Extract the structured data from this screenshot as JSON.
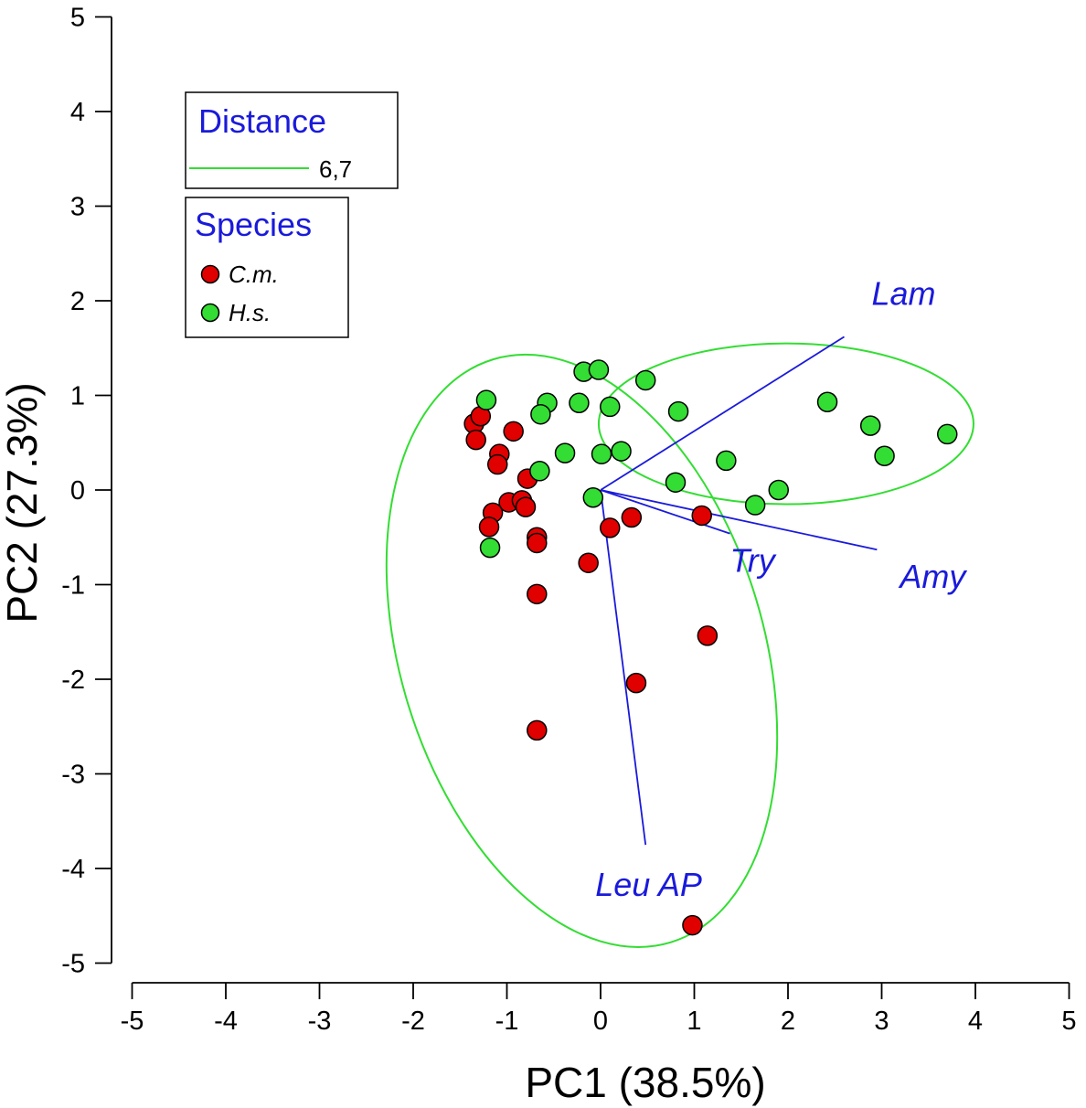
{
  "chart_data": {
    "type": "scatter",
    "title": "",
    "xlabel": "PC1 (38.5%)",
    "ylabel": "PC2 (27.3%)",
    "xlim": [
      -5,
      5
    ],
    "ylim": [
      -5,
      5
    ],
    "xticks": [
      "-5",
      "-4",
      "-3",
      "-2",
      "-1",
      "0",
      "1",
      "2",
      "3",
      "4",
      "5"
    ],
    "yticks": [
      "5",
      "4",
      "3",
      "2",
      "1",
      "0",
      "-1",
      "-2",
      "-3",
      "-4",
      "-5"
    ],
    "grid": false,
    "colors": {
      "cm": "#e00000",
      "hs": "#33dd33",
      "vector": "#1a1adb",
      "ellipse": "#33dd33"
    },
    "legend_distance": {
      "title": "Distance",
      "entries": [
        {
          "label": "6,7"
        }
      ]
    },
    "legend_species": {
      "title": "Species",
      "entries": [
        {
          "label": "C.m.",
          "series": "cm"
        },
        {
          "label": "H.s.",
          "series": "hs"
        }
      ]
    },
    "series": [
      {
        "name": "C.m.",
        "key": "cm",
        "points": [
          [
            -1.35,
            0.7
          ],
          [
            -1.28,
            0.78
          ],
          [
            -1.33,
            0.53
          ],
          [
            -0.93,
            0.62
          ],
          [
            -1.08,
            0.38
          ],
          [
            -1.1,
            0.27
          ],
          [
            -0.78,
            0.12
          ],
          [
            -0.98,
            -0.13
          ],
          [
            -0.84,
            -0.11
          ],
          [
            -0.8,
            -0.18
          ],
          [
            -1.15,
            -0.24
          ],
          [
            -1.19,
            -0.39
          ],
          [
            -0.68,
            -0.5
          ],
          [
            -0.68,
            -0.56
          ],
          [
            -0.68,
            -1.1
          ],
          [
            0.1,
            -0.4
          ],
          [
            0.33,
            -0.29
          ],
          [
            1.08,
            -0.27
          ],
          [
            -0.13,
            -0.77
          ],
          [
            1.14,
            -1.54
          ],
          [
            0.38,
            -2.04
          ],
          [
            -0.68,
            -2.54
          ],
          [
            0.98,
            -4.6
          ]
        ]
      },
      {
        "name": "H.s.",
        "key": "hs",
        "points": [
          [
            -1.22,
            0.95
          ],
          [
            -0.57,
            0.92
          ],
          [
            -0.64,
            0.8
          ],
          [
            -0.18,
            1.25
          ],
          [
            -0.02,
            1.27
          ],
          [
            0.48,
            1.16
          ],
          [
            -0.23,
            0.92
          ],
          [
            0.1,
            0.88
          ],
          [
            0.83,
            0.83
          ],
          [
            -0.38,
            0.39
          ],
          [
            0.01,
            0.38
          ],
          [
            0.22,
            0.41
          ],
          [
            -0.65,
            0.2
          ],
          [
            1.34,
            0.31
          ],
          [
            0.8,
            0.08
          ],
          [
            -0.08,
            -0.08
          ],
          [
            1.9,
            0.0
          ],
          [
            1.65,
            -0.16
          ],
          [
            -1.18,
            -0.61
          ],
          [
            2.42,
            0.93
          ],
          [
            2.88,
            0.68
          ],
          [
            3.03,
            0.36
          ],
          [
            3.7,
            0.59
          ]
        ]
      }
    ],
    "vectors": [
      {
        "label": "Lam",
        "x": 2.6,
        "y": 1.62
      },
      {
        "label": "Try",
        "x": 1.38,
        "y": -0.46
      },
      {
        "label": "Amy",
        "x": 2.95,
        "y": -0.63
      },
      {
        "label": "Leu AP",
        "x": 0.48,
        "y": -3.75
      }
    ],
    "ellipses": [
      {
        "group": "C.m.",
        "cx": -0.2,
        "cy": -1.7,
        "rx": 1.94,
        "ry": 3.22,
        "angle_deg": -17
      },
      {
        "group": "H.s.",
        "cx": 1.98,
        "cy": 0.7,
        "rx": 2.0,
        "ry": 0.85,
        "angle_deg": 0
      }
    ],
    "annotations": []
  }
}
